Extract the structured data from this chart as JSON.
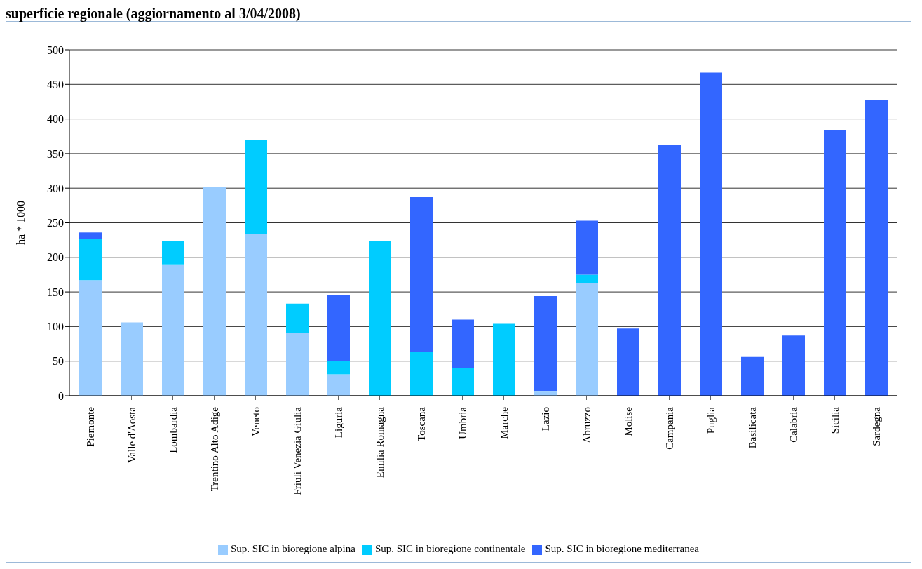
{
  "chart_data": {
    "type": "bar",
    "title": "superficie regionale (aggiornamento al 3/04/2008)",
    "ylabel": "ha * 1000",
    "categories": [
      "Piemonte",
      "Valle d'Aosta",
      "Lombardia",
      "Trentino Alto Adige",
      "Veneto",
      "Friuli Venezia Giulia",
      "Liguria",
      "Emilia Romagna",
      "Toscana",
      "Umbria",
      "Marche",
      "Lazio",
      "Abruzzo",
      "Molise",
      "Campania",
      "Puglia",
      "Basilicata",
      "Calabria",
      "Sicilia",
      "Sardegna"
    ],
    "series": [
      {
        "name": "Sup. SIC in bioregione alpina",
        "color": "#99ccff",
        "values": [
          167,
          106,
          190,
          302,
          234,
          91,
          31,
          null,
          null,
          null,
          null,
          6,
          163,
          null,
          null,
          null,
          null,
          null,
          null,
          null
        ]
      },
      {
        "name": "Sup. SIC in bioregione continentale",
        "color": "#00ccff",
        "values": [
          60,
          null,
          34,
          null,
          136,
          42,
          19,
          224,
          63,
          40,
          104,
          null,
          12,
          null,
          null,
          null,
          null,
          null,
          null,
          null
        ]
      },
      {
        "name": "Sup. SIC in bioregione mediterranea",
        "color": "#3366ff",
        "values": [
          9,
          null,
          null,
          null,
          null,
          null,
          96,
          null,
          224,
          70,
          null,
          138,
          78,
          97,
          363,
          467,
          56,
          87,
          384,
          427
        ]
      }
    ],
    "stacked": true,
    "ylim": [
      0,
      500
    ],
    "yticks": [
      0,
      50,
      100,
      150,
      200,
      250,
      300,
      350,
      400,
      450,
      500
    ],
    "grid": "y",
    "legend": "bottom"
  }
}
